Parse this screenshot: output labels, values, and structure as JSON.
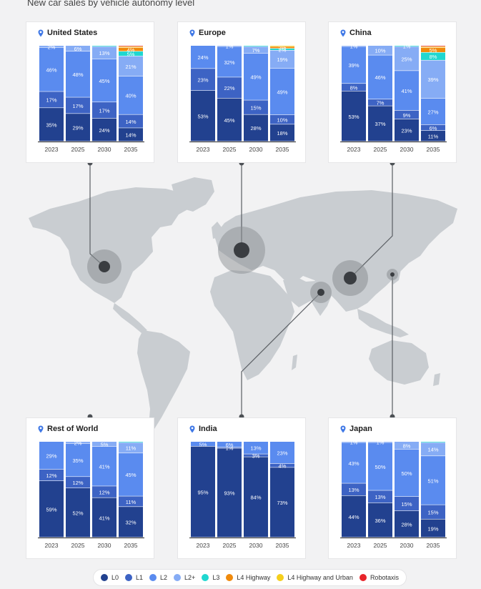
{
  "page_title": "New car sales by vehicle autonomy level",
  "colors": {
    "L0": "#22418f",
    "L1": "#3d63c4",
    "L2": "#5a8bef",
    "L2+": "#86acf5",
    "L3": "#1fd7d0",
    "L4 Highway": "#f08a0c",
    "L4 Highway and Urban": "#f5cf1c",
    "Robotaxis": "#e8252b",
    "map_land": "#c9cdd1",
    "connector": "#5a5e63"
  },
  "legend": [
    "L0",
    "L1",
    "L2",
    "L2+",
    "L3",
    "L4 Highway",
    "L4 Highway and Urban",
    "Robotaxis"
  ],
  "chart_data": [
    {
      "type": "bar",
      "stacked": true,
      "region": "United States",
      "categories": [
        "2023",
        "2025",
        "2030",
        "2035"
      ],
      "series": [
        {
          "name": "L0",
          "values": [
            35,
            29,
            24,
            14
          ],
          "labels": [
            "35%",
            "29%",
            "24%",
            "14%"
          ]
        },
        {
          "name": "L1",
          "values": [
            17,
            17,
            17,
            14
          ],
          "labels": [
            "17%",
            "17%",
            "17%",
            "14%"
          ]
        },
        {
          "name": "L2",
          "values": [
            46,
            48,
            45,
            40
          ],
          "labels": [
            "46%",
            "48%",
            "45%",
            "40%"
          ]
        },
        {
          "name": "L2+",
          "values": [
            2,
            6,
            13,
            21
          ],
          "labels": [
            "2%",
            "6%",
            "13%",
            "21%"
          ]
        },
        {
          "name": "L3",
          "values": [
            0,
            0,
            1,
            5
          ],
          "labels": [
            "",
            "",
            "",
            "5%"
          ]
        },
        {
          "name": "L4 Highway",
          "values": [
            0,
            0,
            0,
            4
          ],
          "labels": [
            "",
            "",
            "",
            "4%"
          ]
        },
        {
          "name": "L4 Highway and Urban",
          "values": [
            0,
            0,
            0,
            1
          ],
          "labels": [
            "",
            "",
            "",
            ""
          ]
        },
        {
          "name": "Robotaxis",
          "values": [
            0,
            0,
            0,
            1
          ],
          "labels": [
            "",
            "",
            "",
            ""
          ]
        }
      ],
      "ylim": [
        0,
        100
      ]
    },
    {
      "type": "bar",
      "stacked": true,
      "region": "Europe",
      "categories": [
        "2023",
        "2025",
        "2030",
        "2035"
      ],
      "series": [
        {
          "name": "L0",
          "values": [
            53,
            45,
            28,
            18
          ],
          "labels": [
            "53%",
            "45%",
            "28%",
            "18%"
          ]
        },
        {
          "name": "L1",
          "values": [
            23,
            22,
            15,
            10
          ],
          "labels": [
            "23%",
            "22%",
            "15%",
            "10%"
          ]
        },
        {
          "name": "L2",
          "values": [
            24,
            32,
            49,
            49
          ],
          "labels": [
            "24%",
            "32%",
            "49%",
            "49%"
          ]
        },
        {
          "name": "L2+",
          "values": [
            0,
            1,
            7,
            19
          ],
          "labels": [
            "0%",
            "1%",
            "7%",
            "19%"
          ]
        },
        {
          "name": "L3",
          "values": [
            0,
            0,
            1,
            2
          ],
          "labels": [
            "",
            "",
            "",
            "2%"
          ]
        },
        {
          "name": "L4 Highway",
          "values": [
            0,
            0,
            0,
            2
          ],
          "labels": [
            "",
            "",
            "",
            "2%"
          ]
        },
        {
          "name": "L4 Highway and Urban",
          "values": [
            0,
            0,
            0,
            1
          ],
          "labels": [
            "",
            "",
            "",
            ""
          ]
        },
        {
          "name": "Robotaxis",
          "values": [
            0,
            0,
            0,
            0
          ],
          "labels": [
            "",
            "",
            "",
            ""
          ]
        }
      ],
      "ylim": [
        0,
        100
      ]
    },
    {
      "type": "bar",
      "stacked": true,
      "region": "China",
      "categories": [
        "2023",
        "2025",
        "2030",
        "2035"
      ],
      "series": [
        {
          "name": "L0",
          "values": [
            53,
            37,
            23,
            11
          ],
          "labels": [
            "53%",
            "37%",
            "23%",
            "11%"
          ]
        },
        {
          "name": "L1",
          "values": [
            8,
            7,
            9,
            6
          ],
          "labels": [
            "8%",
            "7%",
            "9%",
            "6%"
          ]
        },
        {
          "name": "L2",
          "values": [
            39,
            46,
            41,
            27
          ],
          "labels": [
            "39%",
            "46%",
            "41%",
            "27%"
          ]
        },
        {
          "name": "L2+",
          "values": [
            1,
            10,
            25,
            39
          ],
          "labels": [
            "1%",
            "10%",
            "25%",
            "39%"
          ]
        },
        {
          "name": "L3",
          "values": [
            0,
            0,
            1,
            8
          ],
          "labels": [
            "",
            "",
            "1%",
            "8%"
          ]
        },
        {
          "name": "L4 Highway",
          "values": [
            0,
            0,
            0,
            5
          ],
          "labels": [
            "",
            "",
            "",
            "5%"
          ]
        },
        {
          "name": "L4 Highway and Urban",
          "values": [
            0,
            0,
            0,
            1
          ],
          "labels": [
            "",
            "",
            "",
            ""
          ]
        },
        {
          "name": "Robotaxis",
          "values": [
            0,
            0,
            0,
            1
          ],
          "labels": [
            "",
            "",
            "",
            ""
          ]
        }
      ],
      "ylim": [
        0,
        100
      ]
    },
    {
      "type": "bar",
      "stacked": true,
      "region": "Rest of World",
      "categories": [
        "2023",
        "2025",
        "2030",
        "2035"
      ],
      "series": [
        {
          "name": "L0",
          "values": [
            59,
            52,
            41,
            32
          ],
          "labels": [
            "59%",
            "52%",
            "41%",
            "32%"
          ]
        },
        {
          "name": "L1",
          "values": [
            12,
            12,
            12,
            11
          ],
          "labels": [
            "12%",
            "12%",
            "12%",
            "11%"
          ]
        },
        {
          "name": "L2",
          "values": [
            29,
            35,
            41,
            45
          ],
          "labels": [
            "29%",
            "35%",
            "41%",
            "45%"
          ]
        },
        {
          "name": "L2+",
          "values": [
            0,
            2,
            5,
            11
          ],
          "labels": [
            "",
            "2%",
            "5%",
            "11%"
          ]
        },
        {
          "name": "L3",
          "values": [
            0,
            0,
            0,
            1
          ],
          "labels": [
            "",
            "",
            "",
            ""
          ]
        },
        {
          "name": "L4 Highway",
          "values": [
            0,
            0,
            0,
            0
          ],
          "labels": [
            "",
            "",
            "",
            ""
          ]
        },
        {
          "name": "L4 Highway and Urban",
          "values": [
            0,
            0,
            0,
            0
          ],
          "labels": [
            "",
            "",
            "",
            ""
          ]
        },
        {
          "name": "Robotaxis",
          "values": [
            0,
            0,
            0,
            0
          ],
          "labels": [
            "",
            "",
            "",
            ""
          ]
        }
      ],
      "ylim": [
        0,
        100
      ]
    },
    {
      "type": "bar",
      "stacked": true,
      "region": "India",
      "categories": [
        "2023",
        "2025",
        "2030",
        "2035"
      ],
      "series": [
        {
          "name": "L0",
          "values": [
            95,
            93,
            84,
            73
          ],
          "labels": [
            "95%",
            "93%",
            "84%",
            "73%"
          ]
        },
        {
          "name": "L1",
          "values": [
            0,
            1,
            3,
            4
          ],
          "labels": [
            "",
            "1%",
            "3%",
            "4%"
          ]
        },
        {
          "name": "L2",
          "values": [
            5,
            6,
            13,
            23
          ],
          "labels": [
            "5%",
            "6%",
            "13%",
            "23%"
          ]
        },
        {
          "name": "L2+",
          "values": [
            0,
            0,
            0,
            0
          ],
          "labels": [
            "",
            "",
            "",
            ""
          ]
        },
        {
          "name": "L3",
          "values": [
            0,
            0,
            0,
            0
          ],
          "labels": [
            "",
            "",
            "",
            ""
          ]
        },
        {
          "name": "L4 Highway",
          "values": [
            0,
            0,
            0,
            0
          ],
          "labels": [
            "",
            "",
            "",
            ""
          ]
        },
        {
          "name": "L4 Highway and Urban",
          "values": [
            0,
            0,
            0,
            0
          ],
          "labels": [
            "",
            "",
            "",
            ""
          ]
        },
        {
          "name": "Robotaxis",
          "values": [
            0,
            0,
            0,
            0
          ],
          "labels": [
            "",
            "",
            "",
            ""
          ]
        }
      ],
      "ylim": [
        0,
        100
      ]
    },
    {
      "type": "bar",
      "stacked": true,
      "region": "Japan",
      "categories": [
        "2023",
        "2025",
        "2030",
        "2035"
      ],
      "series": [
        {
          "name": "L0",
          "values": [
            44,
            36,
            28,
            19
          ],
          "labels": [
            "44%",
            "36%",
            "28%",
            "19%"
          ]
        },
        {
          "name": "L1",
          "values": [
            13,
            13,
            15,
            15
          ],
          "labels": [
            "13%",
            "13%",
            "15%",
            "15%"
          ]
        },
        {
          "name": "L2",
          "values": [
            43,
            50,
            50,
            51
          ],
          "labels": [
            "43%",
            "50%",
            "50%",
            "51%"
          ]
        },
        {
          "name": "L2+",
          "values": [
            1,
            1,
            8,
            14
          ],
          "labels": [
            "1%",
            "1%",
            "8%",
            "14%"
          ]
        },
        {
          "name": "L3",
          "values": [
            0,
            0,
            0,
            1
          ],
          "labels": [
            "",
            "",
            "",
            ""
          ]
        },
        {
          "name": "L4 Highway",
          "values": [
            0,
            0,
            0,
            0
          ],
          "labels": [
            "",
            "",
            "",
            ""
          ]
        },
        {
          "name": "L4 Highway and Urban",
          "values": [
            0,
            0,
            0,
            0
          ],
          "labels": [
            "",
            "",
            "",
            ""
          ]
        },
        {
          "name": "Robotaxis",
          "values": [
            0,
            0,
            0,
            0
          ],
          "labels": [
            "",
            "",
            "",
            ""
          ]
        }
      ],
      "ylim": [
        0,
        100
      ]
    }
  ]
}
